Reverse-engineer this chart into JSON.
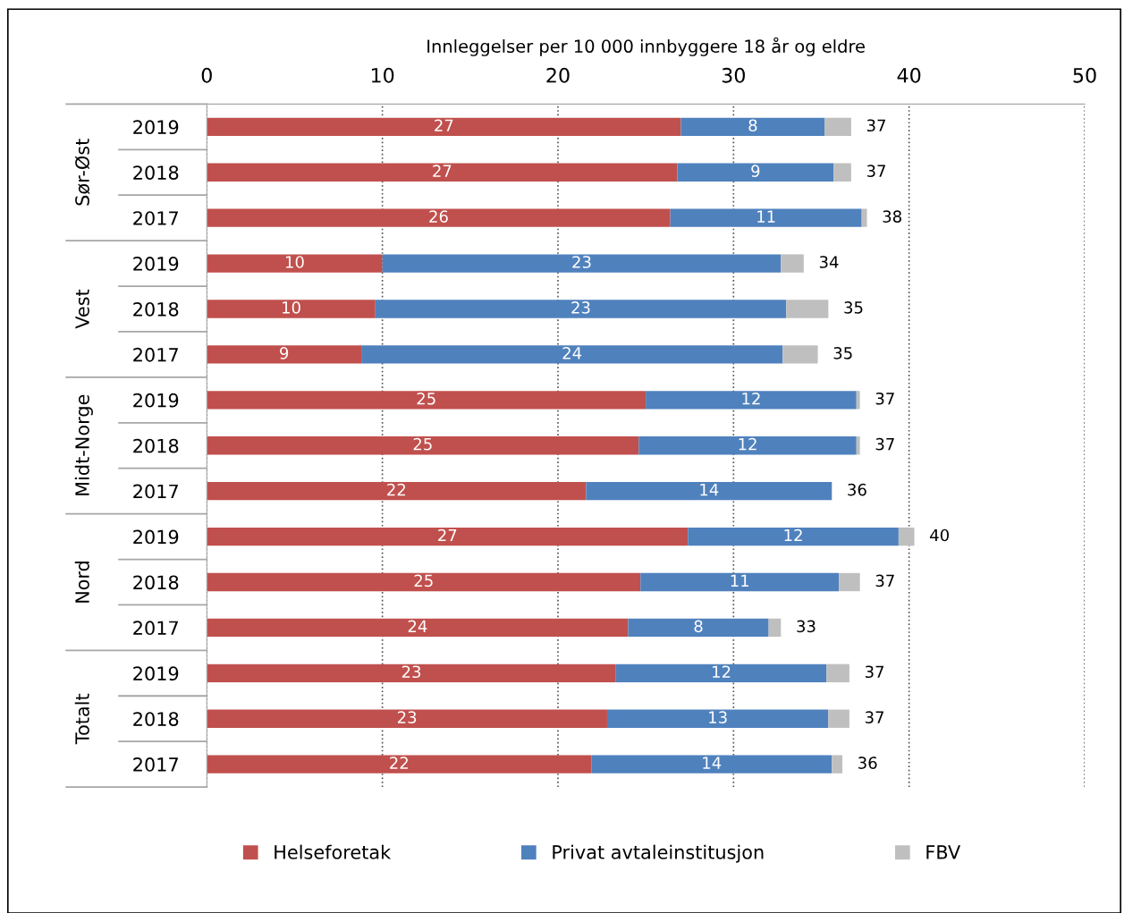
{
  "chart_data": {
    "type": "bar",
    "orientation": "horizontal",
    "stacked": true,
    "xlabel": "Innleggelser per 10 000 innbyggere 18 år og eldre",
    "categories": [
      "2019",
      "2018",
      "2017",
      "2019",
      "2018",
      "2017",
      "2019",
      "2018",
      "2017",
      "2019",
      "2018",
      "2017",
      "2019",
      "2018",
      "2017"
    ],
    "annotations": [
      "Sør-Øst",
      "Vest",
      "Midt-Norge",
      "Nord",
      "Totalt"
    ],
    "series": [
      {
        "name": "Helseforetak",
        "color": "#c0504d",
        "values": [
          27.0,
          26.8,
          26.4,
          10.0,
          9.6,
          8.8,
          25.0,
          24.6,
          21.6,
          27.4,
          24.7,
          24.0,
          23.3,
          22.8,
          21.9
        ],
        "value_labels": [
          "27",
          "27",
          "26",
          "10",
          "10",
          "9",
          "25",
          "25",
          "22",
          "27",
          "25",
          "24",
          "23",
          "23",
          "22"
        ]
      },
      {
        "name": "Privat avtaleinstitusjon",
        "color": "#4f81bd",
        "values": [
          8.2,
          8.9,
          10.9,
          22.7,
          23.4,
          24.0,
          12.0,
          12.4,
          14.0,
          12.0,
          11.3,
          8.0,
          12.0,
          12.6,
          13.7
        ],
        "value_labels": [
          "8",
          "9",
          "11",
          "23",
          "23",
          "24",
          "12",
          "12",
          "14",
          "12",
          "11",
          "8",
          "12",
          "13",
          "14"
        ]
      },
      {
        "name": "FBV",
        "color": "#bfbfbf",
        "values": [
          1.5,
          1.0,
          0.3,
          1.3,
          2.4,
          2.0,
          0.2,
          0.2,
          0,
          0.9,
          1.2,
          0.7,
          1.3,
          1.2,
          0.6
        ]
      }
    ],
    "totals": [
      "37",
      "37",
      "38",
      "34",
      "35",
      "35",
      "37",
      "37",
      "36",
      "40",
      "37",
      "33",
      "37",
      "37",
      "36"
    ],
    "xlim": [
      0,
      50
    ],
    "xticks": [
      0,
      10,
      20,
      30,
      40,
      50
    ],
    "grid": "x",
    "legend": "bottom"
  }
}
